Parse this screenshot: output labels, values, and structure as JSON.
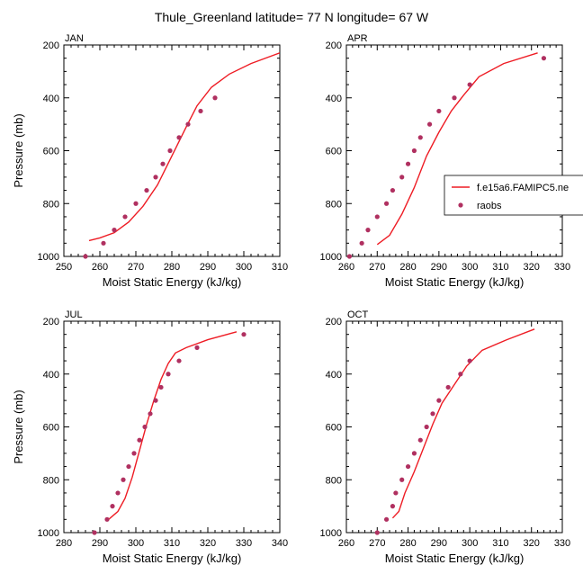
{
  "title": "Thule_Greenland  latitude= 77 N longitude= 67 W",
  "legend": {
    "model_label": "f.e15a6.FAMIPC5.ne",
    "obs_label": "raobs"
  },
  "colors": {
    "model": "#ee1c24",
    "obs": "#b03060"
  },
  "chart_data": [
    {
      "type": "line",
      "panel": "JAN",
      "xlabel": "Moist Static Energy (kJ/kg)",
      "ylabel": "Pressure (mb)",
      "xlim": [
        250,
        310
      ],
      "ylim": [
        1000,
        200
      ],
      "xticks": [
        250,
        260,
        270,
        280,
        290,
        300,
        310
      ],
      "yticks": [
        200,
        400,
        600,
        800,
        1000
      ],
      "series": [
        {
          "name": "model",
          "points": [
            [
              257,
              940
            ],
            [
              260,
              930
            ],
            [
              264,
              910
            ],
            [
              268,
              870
            ],
            [
              272,
              810
            ],
            [
              276,
              730
            ],
            [
              280,
              620
            ],
            [
              284,
              510
            ],
            [
              287,
              430
            ],
            [
              291,
              360
            ],
            [
              296,
              310
            ],
            [
              302,
              270
            ],
            [
              310,
              230
            ]
          ]
        },
        {
          "name": "raobs",
          "points": [
            [
              256,
              1000
            ],
            [
              261,
              950
            ],
            [
              264,
              900
            ],
            [
              267,
              850
            ],
            [
              270,
              800
            ],
            [
              273,
              750
            ],
            [
              275.5,
              700
            ],
            [
              277.5,
              650
            ],
            [
              279.5,
              600
            ],
            [
              282,
              550
            ],
            [
              284.5,
              500
            ],
            [
              288,
              450
            ],
            [
              292,
              400
            ]
          ]
        }
      ]
    },
    {
      "type": "line",
      "panel": "APR",
      "xlabel": "Moist Static Energy (kJ/kg)",
      "ylabel": "",
      "xlim": [
        260,
        330
      ],
      "ylim": [
        1000,
        200
      ],
      "xticks": [
        260,
        270,
        280,
        290,
        300,
        310,
        320,
        330
      ],
      "yticks": [
        200,
        400,
        600,
        800,
        1000
      ],
      "show_legend": true,
      "series": [
        {
          "name": "model",
          "points": [
            [
              270,
              955
            ],
            [
              274,
              920
            ],
            [
              278,
              840
            ],
            [
              282,
              740
            ],
            [
              286,
              620
            ],
            [
              290,
              530
            ],
            [
              294,
              450
            ],
            [
              298,
              390
            ],
            [
              303,
              320
            ],
            [
              311,
              270
            ],
            [
              322,
              230
            ]
          ]
        },
        {
          "name": "raobs",
          "points": [
            [
              261,
              1000
            ],
            [
              265,
              950
            ],
            [
              267,
              900
            ],
            [
              270,
              850
            ],
            [
              273,
              800
            ],
            [
              275,
              750
            ],
            [
              278,
              700
            ],
            [
              280,
              650
            ],
            [
              282,
              600
            ],
            [
              284,
              550
            ],
            [
              287,
              500
            ],
            [
              290,
              450
            ],
            [
              295,
              400
            ],
            [
              300,
              350
            ],
            [
              324,
              250
            ]
          ]
        }
      ]
    },
    {
      "type": "line",
      "panel": "JUL",
      "xlabel": "Moist Static Energy (kJ/kg)",
      "ylabel": "Pressure (mb)",
      "xlim": [
        280,
        340
      ],
      "ylim": [
        1000,
        200
      ],
      "xticks": [
        280,
        290,
        300,
        310,
        320,
        330,
        340
      ],
      "yticks": [
        200,
        400,
        600,
        800,
        1000
      ],
      "series": [
        {
          "name": "model",
          "points": [
            [
              292,
              955
            ],
            [
              295,
              920
            ],
            [
              297,
              870
            ],
            [
              299,
              790
            ],
            [
              301,
              690
            ],
            [
              303,
              590
            ],
            [
              305,
              500
            ],
            [
              307,
              420
            ],
            [
              309,
              360
            ],
            [
              311,
              320
            ],
            [
              314,
              300
            ],
            [
              320,
              270
            ],
            [
              328,
              240
            ]
          ]
        },
        {
          "name": "raobs",
          "points": [
            [
              288.5,
              1000
            ],
            [
              292,
              950
            ],
            [
              293.5,
              900
            ],
            [
              295,
              850
            ],
            [
              296.5,
              800
            ],
            [
              298,
              750
            ],
            [
              299.5,
              700
            ],
            [
              301,
              650
            ],
            [
              302.5,
              600
            ],
            [
              304,
              550
            ],
            [
              305.5,
              500
            ],
            [
              307,
              450
            ],
            [
              309,
              400
            ],
            [
              312,
              350
            ],
            [
              317,
              300
            ],
            [
              330,
              250
            ]
          ]
        }
      ]
    },
    {
      "type": "line",
      "panel": "OCT",
      "xlabel": "Moist Static Energy (kJ/kg)",
      "ylabel": "",
      "xlim": [
        260,
        330
      ],
      "ylim": [
        1000,
        200
      ],
      "xticks": [
        260,
        270,
        280,
        290,
        300,
        310,
        320,
        330
      ],
      "yticks": [
        200,
        400,
        600,
        800,
        1000
      ],
      "series": [
        {
          "name": "model",
          "points": [
            [
              275,
              945
            ],
            [
              277,
              920
            ],
            [
              279,
              850
            ],
            [
              282,
              770
            ],
            [
              285,
              680
            ],
            [
              288,
              590
            ],
            [
              291,
              510
            ],
            [
              295,
              440
            ],
            [
              299,
              370
            ],
            [
              304,
              310
            ],
            [
              312,
              270
            ],
            [
              321,
              230
            ]
          ]
        },
        {
          "name": "raobs",
          "points": [
            [
              270,
              1000
            ],
            [
              273,
              950
            ],
            [
              275,
              900
            ],
            [
              276,
              850
            ],
            [
              278,
              800
            ],
            [
              280,
              750
            ],
            [
              282,
              700
            ],
            [
              284,
              650
            ],
            [
              286,
              600
            ],
            [
              288,
              550
            ],
            [
              290,
              500
            ],
            [
              293,
              450
            ],
            [
              297,
              400
            ],
            [
              300,
              350
            ]
          ]
        }
      ]
    }
  ]
}
